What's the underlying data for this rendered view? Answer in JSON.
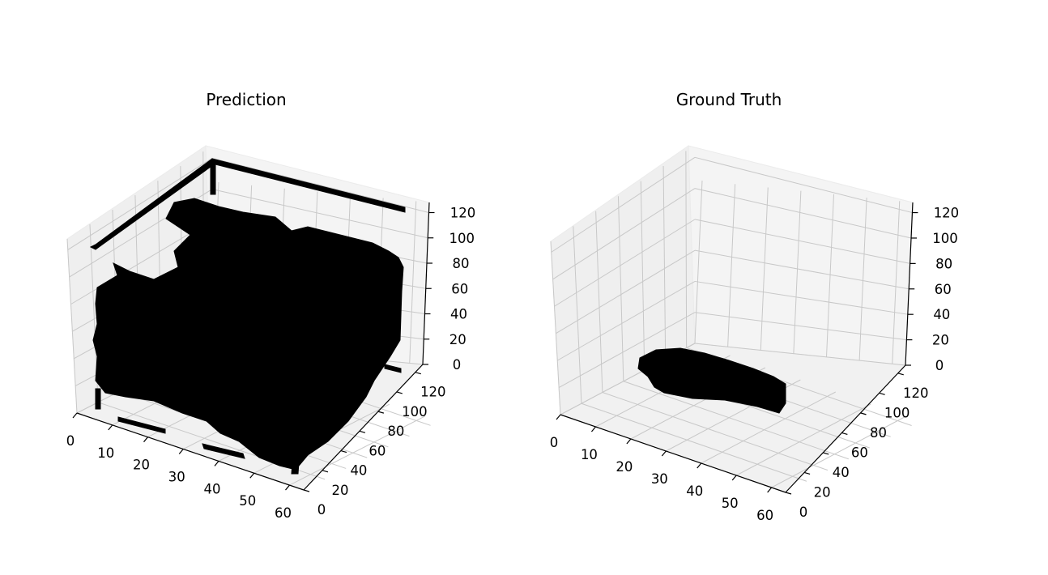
{
  "chart_data": [
    {
      "type": "scatter",
      "projection": "3d",
      "title": "Prediction",
      "marker_color": "#000000",
      "grid": true,
      "x_ticks": [
        0,
        10,
        20,
        30,
        40,
        50,
        60
      ],
      "y_ticks": [
        0,
        20,
        40,
        60,
        80,
        100,
        120
      ],
      "z_ticks": [
        0,
        20,
        40,
        60,
        80,
        100,
        120
      ],
      "xlim": [
        0,
        64
      ],
      "ylim": [
        0,
        128
      ],
      "zlim": [
        0,
        128
      ]
    },
    {
      "type": "scatter",
      "projection": "3d",
      "title": "Ground Truth",
      "marker_color": "#000000",
      "grid": true,
      "x_ticks": [
        0,
        10,
        20,
        30,
        40,
        50,
        60
      ],
      "y_ticks": [
        0,
        20,
        40,
        60,
        80,
        100,
        120
      ],
      "z_ticks": [
        0,
        20,
        40,
        60,
        80,
        100,
        120
      ],
      "xlim": [
        0,
        64
      ],
      "ylim": [
        0,
        128
      ],
      "zlim": [
        0,
        128
      ]
    }
  ]
}
